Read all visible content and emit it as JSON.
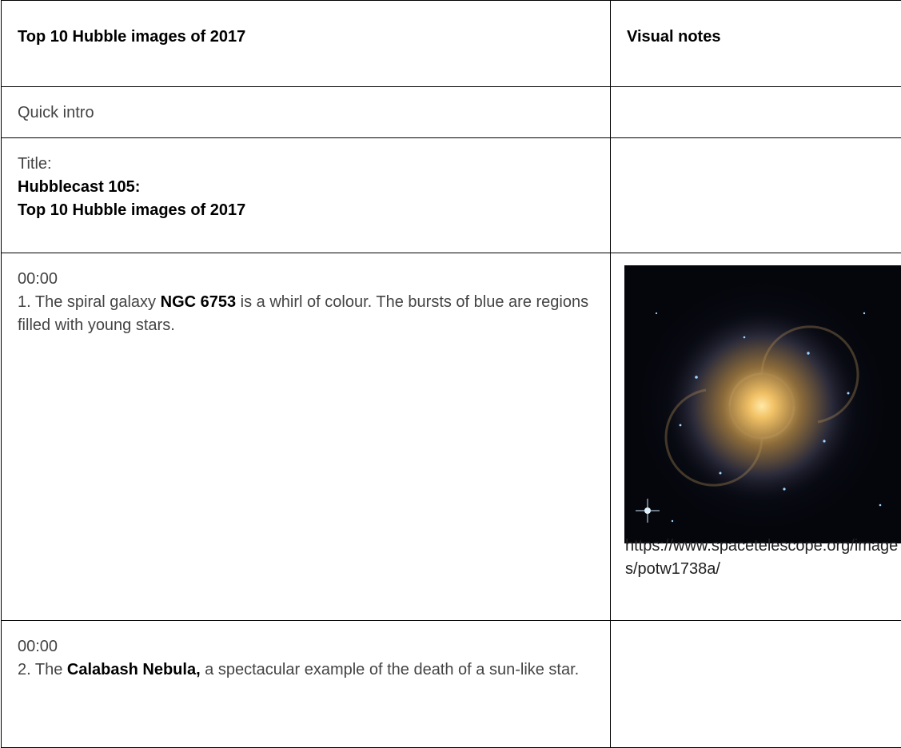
{
  "table": {
    "header": [
      "Top 10 Hubble images of 2017",
      "Visual notes"
    ],
    "rows": [
      {
        "left": [
          "Quick intro"
        ]
      },
      {
        "left": [
          "Title:",
          "Hubblecast 105:",
          "Top 10 Hubble images of 2017"
        ]
      },
      {
        "left": [
          "00:00",
          "1. The spiral galaxy ",
          "NGC 6753",
          " is a whirl of colour. The bursts of blue are regions filled with young stars."
        ],
        "right": [
          "https://www.spacetelescope.org/images/potw1738a/"
        ]
      },
      {
        "left": [
          "00:00",
          "2. The ",
          "Calabash Nebula,",
          " a spectacular example of the death of a sun-like star."
        ]
      }
    ]
  }
}
